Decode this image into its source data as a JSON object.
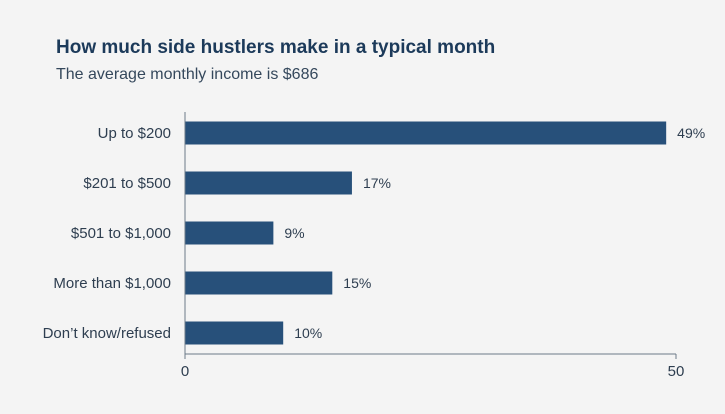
{
  "chart_data": {
    "type": "bar",
    "orientation": "horizontal",
    "title": "How much side hustlers make in a typical month",
    "subtitle": "The average monthly income is $686",
    "categories": [
      "Up to $200",
      "$201 to $500",
      "$501 to $1,000",
      "More than $1,000",
      "Don’t know/refused"
    ],
    "values": [
      49,
      17,
      9,
      15,
      10
    ],
    "value_labels": [
      "49%",
      "17%",
      "9%",
      "15%",
      "10%"
    ],
    "xlim": [
      0,
      50
    ],
    "xticks": [
      0,
      50
    ],
    "xtick_labels": [
      "0",
      "50"
    ],
    "xlabel": "",
    "ylabel": "",
    "grid": false,
    "legend": "none",
    "bar_color": "#27507a",
    "text_color": "#2e3e50",
    "title_color": "#1c3a5a",
    "background": "#f4f4f4"
  }
}
